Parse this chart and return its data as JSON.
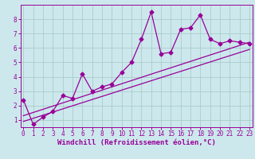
{
  "title": "",
  "xlabel": "Windchill (Refroidissement éolien,°C)",
  "ylabel": "",
  "bg_color": "#cce8ec",
  "grid_color": "#aacccc",
  "line_color": "#990099",
  "x_ticks": [
    0,
    1,
    2,
    3,
    4,
    5,
    6,
    7,
    8,
    9,
    10,
    11,
    12,
    13,
    14,
    15,
    16,
    17,
    18,
    19,
    20,
    21,
    22,
    23
  ],
  "y_ticks": [
    1,
    2,
    3,
    4,
    5,
    6,
    7,
    8
  ],
  "xlim": [
    -0.3,
    23.3
  ],
  "ylim": [
    0.5,
    9.0
  ],
  "series1_x": [
    0,
    1,
    2,
    3,
    4,
    5,
    6,
    7,
    8,
    9,
    10,
    11,
    12,
    13,
    14,
    15,
    16,
    17,
    18,
    19,
    20,
    21,
    22,
    23
  ],
  "series1_y": [
    2.4,
    0.7,
    1.2,
    1.6,
    2.7,
    2.5,
    4.2,
    3.0,
    3.3,
    3.5,
    4.3,
    5.0,
    6.6,
    8.5,
    5.6,
    5.7,
    7.3,
    7.4,
    8.3,
    6.6,
    6.3,
    6.5,
    6.4,
    6.3
  ],
  "series2_x": [
    0,
    23
  ],
  "series2_y": [
    1.3,
    6.4
  ],
  "series3_x": [
    0,
    23
  ],
  "series3_y": [
    0.9,
    5.9
  ],
  "marker": "D",
  "markersize": 2.5,
  "linewidth": 0.9,
  "tick_fontsize": 5.5,
  "label_fontsize": 6.5
}
